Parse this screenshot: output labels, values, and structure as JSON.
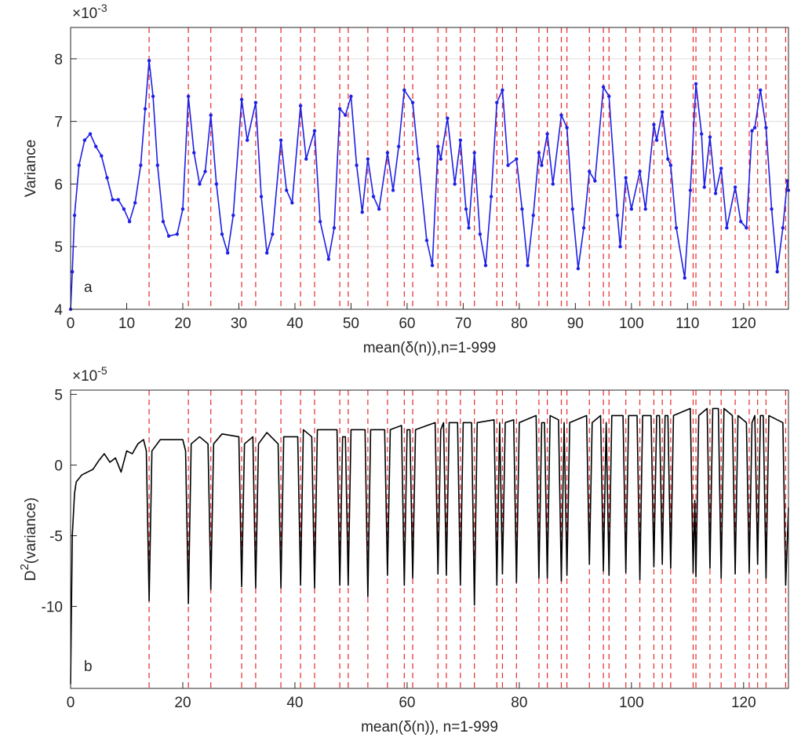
{
  "chart_data": [
    {
      "type": "line",
      "xlabel": "mean(δ(n)),n=1-999",
      "ylabel": "Variance",
      "exponent_base": "×10",
      "exponent": "-3",
      "annotation": "a",
      "xlim": [
        0,
        128
      ],
      "ylim": [
        4,
        8.5
      ],
      "xticks": [
        0,
        10,
        20,
        30,
        40,
        50,
        60,
        70,
        80,
        90,
        100,
        110,
        120
      ],
      "yticks": [
        4,
        5,
        6,
        7,
        8
      ],
      "grid": true,
      "vline_color": "#e8292b",
      "vlines": [
        14,
        21,
        25,
        30.5,
        33,
        37.5,
        41,
        43.5,
        48,
        49.5,
        53,
        56.5,
        59.5,
        61,
        65.5,
        67,
        69.5,
        72,
        76,
        77,
        79.5,
        83.5,
        85,
        87.5,
        88.5,
        92.5,
        95,
        96,
        99,
        101.5,
        104,
        105.5,
        107,
        111,
        111.5,
        114,
        116,
        118.5,
        121,
        122.5,
        124,
        127.5
      ],
      "series": [
        {
          "color": "#1f1fe6",
          "markers": true,
          "x": [
            0,
            0.3,
            0.7,
            1.5,
            2.5,
            3.5,
            4.5,
            5.5,
            6.5,
            7.5,
            8.5,
            9.5,
            10.5,
            11.5,
            12.5,
            13.3,
            14,
            14.7,
            15.5,
            16.5,
            17.5,
            19,
            20,
            21,
            22,
            23,
            24,
            25,
            26,
            27,
            28,
            29,
            30.5,
            31.5,
            33,
            34,
            35,
            36,
            37.5,
            38.5,
            39.5,
            41,
            42,
            43.5,
            44.5,
            46,
            47,
            48,
            49,
            50,
            51,
            52,
            53,
            54,
            55,
            56.5,
            57.5,
            58.5,
            59.5,
            61,
            62,
            63.5,
            64.5,
            65.5,
            66,
            67.2,
            68.5,
            69.5,
            70.5,
            71,
            72,
            73,
            74,
            75,
            76,
            77,
            78,
            79.5,
            80.5,
            81.5,
            82.5,
            83.5,
            84,
            85,
            86,
            87.5,
            88.5,
            89.5,
            90.5,
            91.5,
            92.5,
            93.5,
            95,
            96,
            97.5,
            98,
            99,
            100,
            101.5,
            102.5,
            104,
            104.5,
            105.5,
            106.5,
            107,
            108,
            109.5,
            110.5,
            111.5,
            112.5,
            113,
            114,
            115,
            116,
            117,
            118.5,
            119.5,
            120.5,
            121.5,
            122,
            123,
            124,
            125,
            126,
            127,
            127.8,
            128
          ],
          "values": [
            4.0,
            4.6,
            5.5,
            6.3,
            6.7,
            6.8,
            6.6,
            6.45,
            6.1,
            5.75,
            5.75,
            5.6,
            5.4,
            5.7,
            6.3,
            7.2,
            7.97,
            7.4,
            6.3,
            5.4,
            5.17,
            5.2,
            5.6,
            7.4,
            6.5,
            6.0,
            6.2,
            7.1,
            6.0,
            5.2,
            4.9,
            5.5,
            7.35,
            6.7,
            7.3,
            5.8,
            4.9,
            5.2,
            6.7,
            5.9,
            5.7,
            7.25,
            6.4,
            6.85,
            5.4,
            4.8,
            5.3,
            7.2,
            7.1,
            7.4,
            6.3,
            5.55,
            6.4,
            5.8,
            5.6,
            6.5,
            5.9,
            6.6,
            7.5,
            7.3,
            6.4,
            5.1,
            4.7,
            6.6,
            6.4,
            7.05,
            6.0,
            6.7,
            5.6,
            5.3,
            6.5,
            5.2,
            4.7,
            5.8,
            7.3,
            7.5,
            6.3,
            6.4,
            5.6,
            4.7,
            5.5,
            6.5,
            6.3,
            6.8,
            6.0,
            7.1,
            6.9,
            5.6,
            4.65,
            5.3,
            6.2,
            6.05,
            7.55,
            7.4,
            5.5,
            5.0,
            6.1,
            5.6,
            6.2,
            5.6,
            6.95,
            6.7,
            7.15,
            6.4,
            6.3,
            5.3,
            4.5,
            5.9,
            7.6,
            6.8,
            5.95,
            6.75,
            5.85,
            6.25,
            5.3,
            5.95,
            5.4,
            5.3,
            6.85,
            6.9,
            7.5,
            6.9,
            5.6,
            4.6,
            5.3,
            6.05,
            5.9
          ]
        }
      ]
    },
    {
      "type": "line",
      "xlabel": "mean(δ(n)), n=1-999",
      "ylabel": "D",
      "ylabel_superscript": "2",
      "ylabel_suffix": "(variance)",
      "exponent_base": "×10",
      "exponent": "-5",
      "annotation": "b",
      "xlim": [
        0,
        128
      ],
      "ylim": [
        -15.8,
        5.3
      ],
      "xticks": [
        0,
        20,
        40,
        60,
        80,
        100,
        120
      ],
      "yticks": [
        -10,
        -5,
        0,
        5
      ],
      "grid": false,
      "vline_color": "#e8292b",
      "vlines": [
        14,
        21,
        25,
        30.5,
        33,
        37.5,
        41,
        43.5,
        48,
        49.5,
        53,
        56.5,
        59.5,
        61,
        65.5,
        67,
        69.5,
        72,
        76,
        77,
        79.5,
        83.5,
        85,
        87.5,
        88.5,
        92.5,
        95,
        96,
        99,
        101.5,
        104,
        105.5,
        107,
        111,
        111.5,
        114,
        116,
        118.5,
        121,
        122.5,
        124,
        127.5
      ],
      "series": [
        {
          "color": "#000000",
          "markers": false,
          "x": [
            0,
            0.3,
            0.7,
            1,
            2,
            3,
            4,
            5,
            6,
            7,
            8,
            9,
            10,
            11,
            12,
            13,
            13.5,
            14,
            14.5,
            16,
            18,
            20,
            20.5,
            21,
            21.5,
            23,
            24.5,
            25,
            25.5,
            27,
            30,
            30.5,
            31,
            32.5,
            33,
            33.5,
            35,
            37,
            37.5,
            38,
            40.5,
            41,
            41.5,
            43,
            43.5,
            44,
            47.5,
            48,
            48.5,
            49,
            49.5,
            50,
            52.5,
            53,
            53.5,
            56,
            56.5,
            57,
            59,
            59.5,
            60,
            60.5,
            61,
            61.5,
            65,
            65.5,
            66,
            66.5,
            67,
            67.5,
            69,
            69.5,
            70,
            71.5,
            72,
            72.5,
            75.5,
            76,
            76.5,
            77,
            77.5,
            79,
            79.5,
            80,
            83,
            83.5,
            84,
            84.5,
            85,
            85.5,
            87,
            87.5,
            88,
            88.5,
            89,
            92,
            92.5,
            93,
            94.5,
            95,
            95.5,
            96,
            96.5,
            98.5,
            99,
            99.5,
            101,
            101.5,
            102,
            103.5,
            104,
            104.5,
            105,
            105.5,
            106,
            106.5,
            107,
            107.5,
            110.5,
            111,
            111.3,
            111.5,
            112,
            113.5,
            114,
            114.5,
            115.5,
            116,
            116.5,
            118,
            118.5,
            119,
            120.5,
            121,
            121.5,
            122,
            122.5,
            123,
            123.5,
            124,
            124.5,
            127,
            127.5,
            128
          ],
          "values": [
            -15.5,
            -5,
            -2,
            -1.2,
            -0.7,
            -0.5,
            -0.3,
            0.3,
            0.8,
            0.2,
            0.5,
            -0.5,
            1,
            0.8,
            1.5,
            1.8,
            1,
            -9.6,
            1,
            1.8,
            1.8,
            1.8,
            1,
            -9.8,
            1.5,
            2,
            1.5,
            -8.8,
            1.5,
            2.2,
            2,
            -8.6,
            1.5,
            2,
            -8.7,
            1.5,
            2.3,
            1.5,
            -8.7,
            2,
            2,
            -8.5,
            2.5,
            2,
            -8.7,
            2.5,
            2.5,
            -8.5,
            2,
            2,
            -8.5,
            2.5,
            2.5,
            -9.3,
            2.5,
            2.5,
            -7.8,
            2.5,
            2.8,
            -8.5,
            2.5,
            2.5,
            -8,
            2.5,
            3,
            -7.7,
            2.5,
            3,
            -7.8,
            3,
            3,
            -8.5,
            3,
            3,
            -9.9,
            3,
            3.2,
            -8.5,
            3,
            -7.7,
            3,
            3.2,
            -8.3,
            3,
            3.5,
            -8,
            3,
            3,
            -8,
            3.5,
            3.2,
            -8.2,
            3,
            -7.8,
            3,
            3.5,
            -7,
            3,
            3.5,
            -7.5,
            3,
            -7.8,
            3.5,
            3.5,
            -7.6,
            3.5,
            3.5,
            -8.1,
            3.5,
            3.5,
            -7.2,
            3.5,
            3.5,
            -7,
            3.5,
            3.5,
            -7.3,
            3.5,
            4,
            -7.6,
            -2.5,
            -7.9,
            3.5,
            4,
            -7.3,
            4,
            4,
            -8,
            4,
            3.5,
            -7.7,
            3.5,
            3,
            -7.6,
            3,
            3.5,
            -7,
            3.5,
            3.5,
            -8,
            3.5,
            3,
            -8.5,
            -3
          ]
        }
      ]
    }
  ]
}
